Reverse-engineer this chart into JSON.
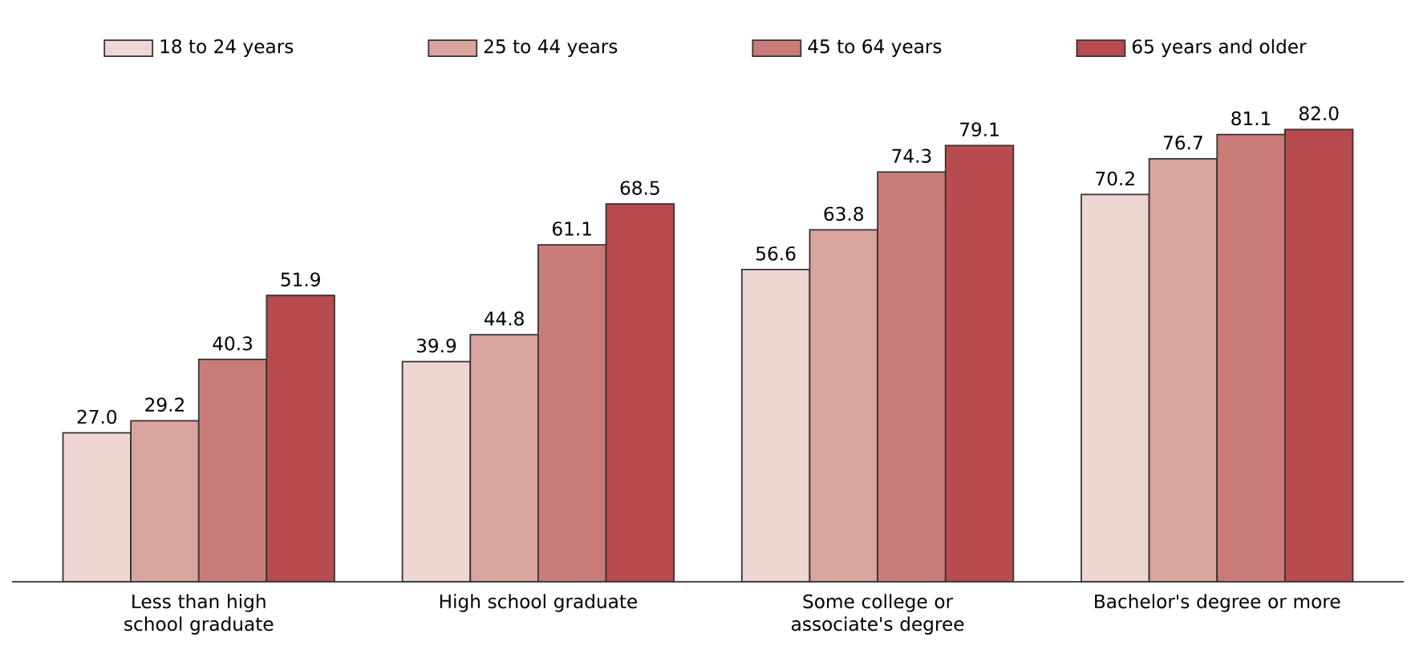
{
  "chart_data": {
    "type": "bar",
    "categories": [
      "Less than high school graduate",
      "High school graduate",
      "Some college or associate's degree",
      "Bachelor's degree or more"
    ],
    "series": [
      {
        "name": "18 to 24 years",
        "color": "#eed6d3",
        "values": [
          27.0,
          39.9,
          56.6,
          70.2
        ],
        "value_labels": [
          "27.0",
          "39.9",
          "56.6",
          "70.2"
        ]
      },
      {
        "name": "25 to 44 years",
        "color": "#d9a39e",
        "values": [
          29.2,
          44.8,
          63.8,
          76.7
        ],
        "value_labels": [
          "29.2",
          "44.8",
          "63.8",
          "76.7"
        ]
      },
      {
        "name": "45 to 64 years",
        "color": "#c97c77",
        "values": [
          40.3,
          61.1,
          74.3,
          81.1
        ],
        "value_labels": [
          "40.3",
          "61.1",
          "74.3",
          "81.1"
        ]
      },
      {
        "name": "65 years and older",
        "color": "#b84b50",
        "values": [
          51.9,
          68.5,
          79.1,
          82.0
        ],
        "value_labels": [
          "51.9",
          "68.5",
          "79.1",
          "82.0"
        ]
      }
    ],
    "tick_labels": "x",
    "legend": "top"
  }
}
